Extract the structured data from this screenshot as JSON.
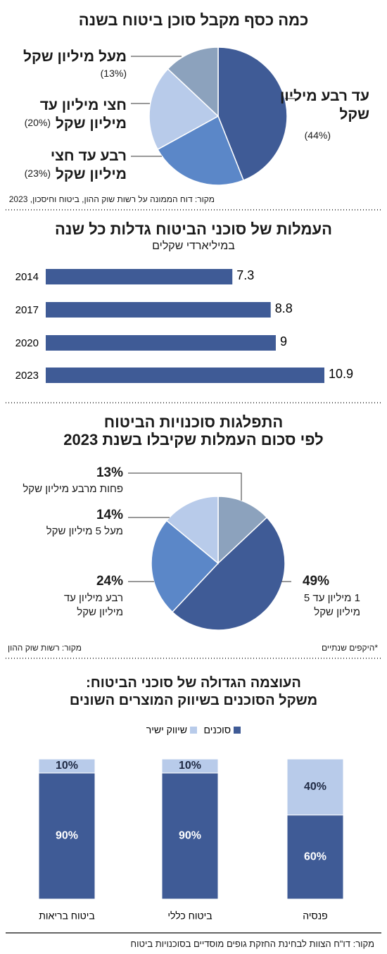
{
  "chart_data": [
    {
      "type": "pie",
      "title": "כמה כסף מקבל סוכן ביטוח בשנה",
      "categories": [
        "עד רבע מיליון שקל",
        "רבע עד חצי מיליון שקל",
        "חצי מיליון עד מיליון שקל",
        "מעל מיליון שקל"
      ],
      "values": [
        44,
        23,
        20,
        13
      ],
      "value_labels": [
        "(44%)",
        "(23%)",
        "(20%)",
        "(13%)"
      ],
      "colors": [
        "#3f5b96",
        "#5b87c8",
        "#b8cbea",
        "#8ca2bd"
      ],
      "source": "מקור: דוח הממונה על רשות שוק ההון, ביטוח וחיסכון, 2023"
    },
    {
      "type": "bar",
      "orientation": "horizontal",
      "title": "העמלות של סוכני הביטוח גדלות כל שנה",
      "subtitle": "במיליארדי שקלים",
      "categories": [
        "2014",
        "2017",
        "2020",
        "2023"
      ],
      "values": [
        7.3,
        8.8,
        9,
        10.9
      ],
      "color": "#3f5b96"
    },
    {
      "type": "pie",
      "title": [
        "התפלגות סוכנויות הביטוח",
        "לפי סכום העמלות שקיבלו בשנת 2023"
      ],
      "categories": [
        "פחות מרבע מיליון שקל",
        "1 מיליון עד 5 מיליון שקל",
        "רבע מיליון עד מיליון שקל",
        "מעל 5 מיליון שקל"
      ],
      "values": [
        13,
        49,
        24,
        14
      ],
      "value_labels": [
        "13%",
        "49%",
        "24%",
        "14%"
      ],
      "colors": [
        "#8ca2bd",
        "#3f5b96",
        "#5b87c8",
        "#b8cbea"
      ],
      "note": "*היקפים שנתיים",
      "source": "מקור: רשות שוק ההון"
    },
    {
      "type": "bar",
      "stacked": true,
      "title": [
        "העוצמה הגדולה של סוכני הביטוח:",
        "משקל הסוכנים בשיווק המוצרים השונים"
      ],
      "categories": [
        "פנסיה",
        "ביטוח כללי",
        "ביטוח בריאות"
      ],
      "series": [
        {
          "name": "סוכנים",
          "color": "#3f5b96",
          "values": [
            60,
            90,
            90
          ],
          "value_labels": [
            "60%",
            "90%",
            "90%"
          ]
        },
        {
          "name": "שיווק ישיר",
          "color": "#b8cbea",
          "values": [
            40,
            10,
            10
          ],
          "value_labels": [
            "40%",
            "10%",
            "10%"
          ]
        }
      ],
      "source": "מקור: דו\"ח הצוות לבחינת החזקת גופים מוסדיים בסוכנויות ביטוח"
    }
  ]
}
